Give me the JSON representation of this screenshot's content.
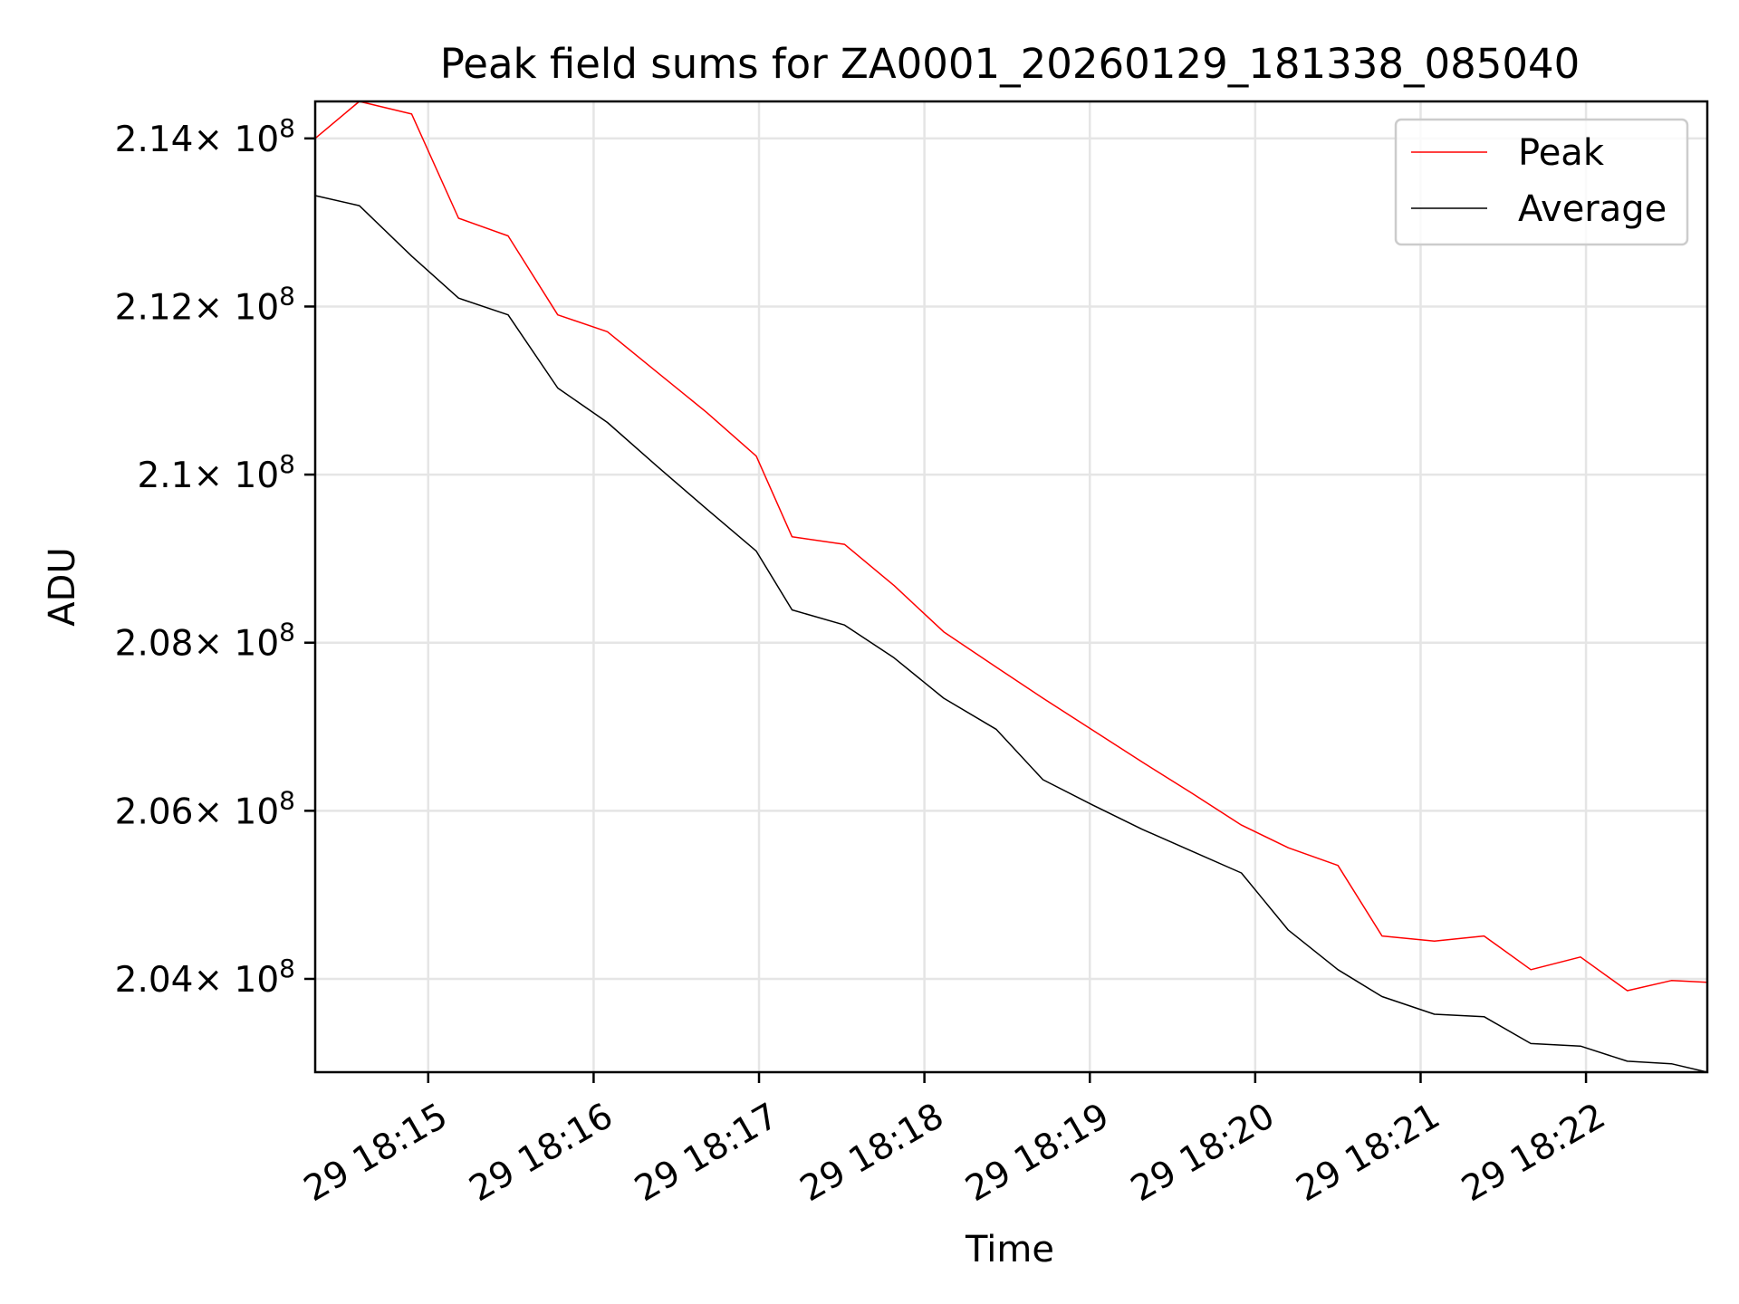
{
  "chart_data": {
    "type": "line",
    "title": "Peak field sums for ZA0001_20260129_181338_085040",
    "xlabel": "Time",
    "ylabel": "ADU",
    "grid": true,
    "legend_position": "top-right",
    "xlim_seconds": [
      0,
      505
    ],
    "ylim_exponent": 8,
    "ylim": [
      2.0289,
      2.1444
    ],
    "x_ticks": [
      {
        "value": 41,
        "label": "29 18:15"
      },
      {
        "value": 101,
        "label": "29 18:16"
      },
      {
        "value": 161,
        "label": "29 18:17"
      },
      {
        "value": 221,
        "label": "29 18:18"
      },
      {
        "value": 281,
        "label": "29 18:19"
      },
      {
        "value": 341,
        "label": "29 18:20"
      },
      {
        "value": 401,
        "label": "29 18:21"
      },
      {
        "value": 461,
        "label": "29 18:22"
      }
    ],
    "y_ticks": [
      {
        "value": 2.04,
        "mantissa": "2.04",
        "base": "× 10",
        "exp": "8"
      },
      {
        "value": 2.06,
        "mantissa": "2.06",
        "base": "× 10",
        "exp": "8"
      },
      {
        "value": 2.08,
        "mantissa": "2.08",
        "base": "× 10",
        "exp": "8"
      },
      {
        "value": 2.1,
        "mantissa": "2.1",
        "base": "× 10",
        "exp": "8"
      },
      {
        "value": 2.12,
        "mantissa": "2.12",
        "base": "× 10",
        "exp": "8"
      },
      {
        "value": 2.14,
        "mantissa": "2.14",
        "base": "× 10",
        "exp": "8"
      }
    ],
    "x_seconds": [
      0,
      16,
      35,
      52,
      70,
      88,
      106,
      124,
      142,
      160,
      173,
      192,
      210,
      228,
      247,
      264,
      282,
      300,
      318,
      336,
      353,
      371,
      387,
      406,
      424,
      441,
      459,
      476,
      492,
      505
    ],
    "series": [
      {
        "name": "Peak",
        "color": "#ff0000",
        "values": [
          2.14,
          2.1444,
          2.1429,
          2.1305,
          2.1284,
          2.119,
          2.117,
          2.1122,
          2.1074,
          2.1022,
          2.0926,
          2.0917,
          2.0868,
          2.0813,
          2.0771,
          2.0734,
          2.0696,
          2.0658,
          2.0621,
          2.0583,
          2.0556,
          2.0535,
          2.0451,
          2.0445,
          2.0451,
          2.0411,
          2.0426,
          2.0386,
          2.0398,
          2.0396
        ]
      },
      {
        "name": "Average",
        "color": "#000000",
        "values": [
          2.1332,
          2.132,
          2.126,
          2.121,
          2.119,
          2.1103,
          2.1062,
          2.101,
          2.0959,
          2.0909,
          2.0839,
          2.0821,
          2.0782,
          2.0734,
          2.0697,
          2.0637,
          2.0607,
          2.0578,
          2.0552,
          2.0526,
          2.0458,
          2.0411,
          2.0379,
          2.0358,
          2.0355,
          2.0323,
          2.032,
          2.0302,
          2.0299,
          2.0289
        ]
      }
    ]
  }
}
